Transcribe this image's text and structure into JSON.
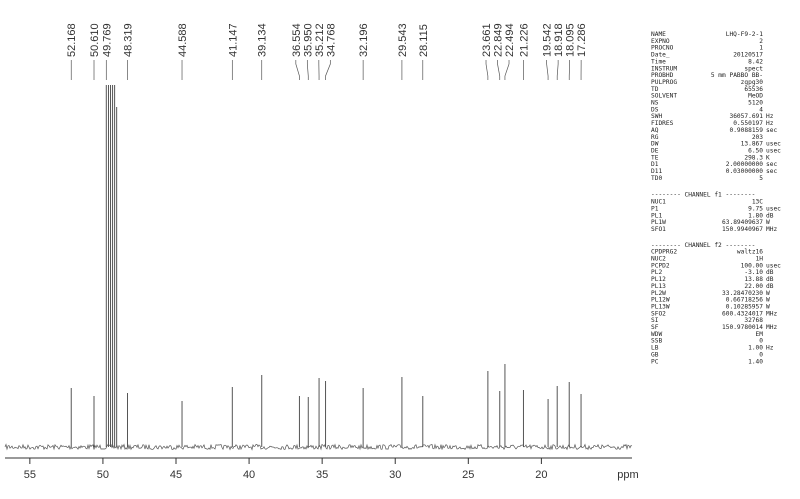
{
  "chart_data": {
    "type": "nmr",
    "x": [
      52.168,
      50.61,
      49.769,
      49.62,
      49.48,
      49.34,
      49.2,
      49.06,
      48.319,
      44.588,
      41.147,
      39.134,
      36.554,
      35.95,
      35.212,
      34.768,
      32.196,
      29.543,
      28.115,
      23.661,
      22.849,
      22.494,
      21.226,
      19.542,
      18.918,
      18.095,
      17.286
    ],
    "x_labels": [
      "52.168",
      "50.610",
      "49.769",
      null,
      null,
      null,
      null,
      null,
      "48.319",
      "44.588",
      "41.147",
      "39.134",
      "36.554",
      "35.950",
      "35.212",
      "34.768",
      "32.196",
      "29.543",
      "28.115",
      "23.661",
      "22.849",
      "22.494",
      "21.226",
      "19.542",
      "18.918",
      "18.095",
      "17.286"
    ],
    "values": [
      59,
      51,
      362,
      362,
      362,
      362,
      362,
      340,
      54,
      46,
      60,
      72,
      51,
      50,
      69,
      66,
      59,
      70,
      51,
      76,
      56,
      83,
      57,
      48,
      61,
      65,
      53
    ],
    "color": "#555555",
    "xlim": [
      56.7,
      13.8
    ],
    "xticks": [
      55,
      50,
      45,
      40,
      35,
      30,
      25,
      20
    ],
    "xlabel": "ppm",
    "ylim": [
      0,
      362
    ]
  },
  "parameters": {
    "acquisition": [
      [
        "NAME",
        "LHQ-F9-2-1",
        null
      ],
      [
        "EXPNO",
        "2",
        null
      ],
      [
        "PROCNO",
        "1",
        null
      ],
      [
        "Date_",
        "20120517",
        null
      ],
      [
        "Time",
        "8.42",
        null
      ],
      [
        "INSTRUM",
        "spect",
        null
      ],
      [
        "PROBHD",
        "5 mm PABBO BB-",
        null
      ],
      [
        "PULPROG",
        "zgpg30",
        null
      ],
      [
        "TD",
        "65536",
        null
      ],
      [
        "SOLVENT",
        "MeOD",
        null
      ],
      [
        "NS",
        "5120",
        null
      ],
      [
        "DS",
        "4",
        null
      ],
      [
        "SWH",
        "36057.691",
        "Hz"
      ],
      [
        "FIDRES",
        "0.550197",
        "Hz"
      ],
      [
        "AQ",
        "0.9088159",
        "sec"
      ],
      [
        "RG",
        "203",
        null
      ],
      [
        "DW",
        "13.867",
        "usec"
      ],
      [
        "DE",
        "6.50",
        "usec"
      ],
      [
        "TE",
        "298.3",
        "K"
      ],
      [
        "D1",
        "2.00000000",
        "sec"
      ],
      [
        "D11",
        "0.03000000",
        "sec"
      ],
      [
        "TD0",
        "5",
        null
      ]
    ],
    "channel_f1_title": "-------- CHANNEL f1 --------",
    "channel_f1": [
      [
        "NUC1",
        "13C",
        null
      ],
      [
        "P1",
        "9.75",
        "usec"
      ],
      [
        "PL1",
        "1.80",
        "dB"
      ],
      [
        "PL1W",
        "63.89409637",
        "W"
      ],
      [
        "SFO1",
        "150.9940967",
        "MHz"
      ]
    ],
    "channel_f2_title": "-------- CHANNEL f2 --------",
    "channel_f2": [
      [
        "CPDPRG2",
        "waltz16",
        null
      ],
      [
        "NUC2",
        "1H",
        null
      ],
      [
        "PCPD2",
        "100.00",
        "usec"
      ],
      [
        "PL2",
        "-3.10",
        "dB"
      ],
      [
        "PL12",
        "13.88",
        "dB"
      ],
      [
        "PL13",
        "22.00",
        "dB"
      ],
      [
        "PL2W",
        "33.28470230",
        "W"
      ],
      [
        "PL12W",
        "0.66718256",
        "W"
      ],
      [
        "PL13W",
        "0.10285957",
        "W"
      ],
      [
        "SFO2",
        "600.4324017",
        "MHz"
      ],
      [
        "SI",
        "32768",
        null
      ],
      [
        "SF",
        "150.9780014",
        "MHz"
      ],
      [
        "WDW",
        "EM",
        null
      ],
      [
        "SSB",
        "0",
        null
      ],
      [
        "LB",
        "1.00",
        "Hz"
      ],
      [
        "GB",
        "0",
        null
      ],
      [
        "PC",
        "1.40",
        null
      ]
    ]
  }
}
